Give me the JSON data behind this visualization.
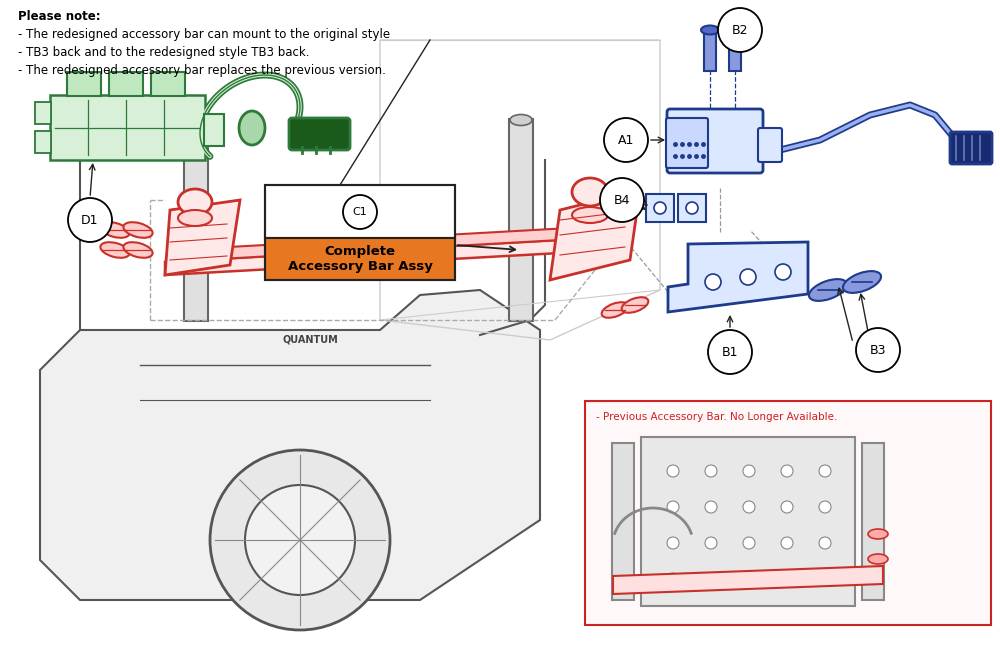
{
  "bg_color": "#ffffff",
  "note_lines": [
    "Please note:",
    "- The redesigned accessory bar can mount to the original style",
    "- TB3 back and to the redesigned style TB3 back.",
    "- The redesigned accessory bar replaces the previous version."
  ],
  "c1_label_top": "C1",
  "c1_label_bot": "Complete\nAccessory Bar Assy",
  "c1_orange": "#E87722",
  "red": "#C8312A",
  "green": "#2D7A3A",
  "blue": "#1E3A8A",
  "dark": "#222222",
  "gray": "#666666",
  "lgray": "#999999",
  "prev_text": "- Previous Accessory Bar. No Longer Available.",
  "prev_red": "#CC2222",
  "figw": 10.0,
  "figh": 6.5,
  "dpi": 100
}
